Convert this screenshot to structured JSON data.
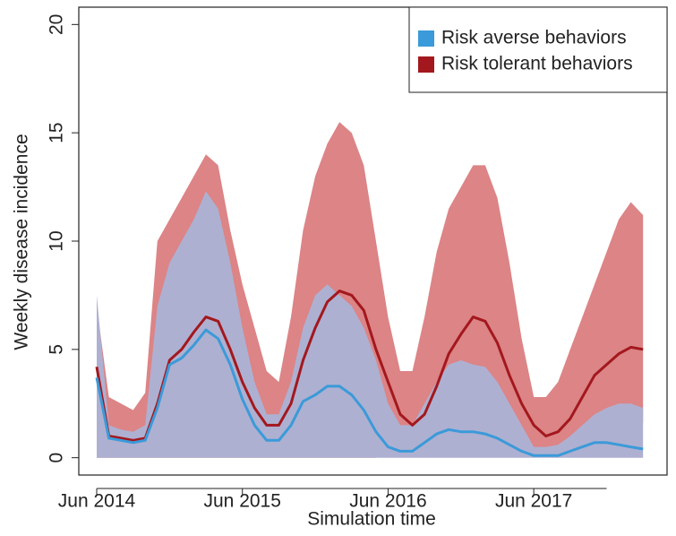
{
  "chart_data": {
    "type": "line",
    "x_label": "Simulation time",
    "y_label": "Weekly disease incidence",
    "x": [
      "Jun 2014",
      "Jul 2014",
      "Aug 2014",
      "Sep 2014",
      "Oct 2014",
      "Nov 2014",
      "Dec 2014",
      "Jan 2015",
      "Feb 2015",
      "Mar 2015",
      "Apr 2015",
      "May 2015",
      "Jun 2015",
      "Jul 2015",
      "Aug 2015",
      "Sep 2015",
      "Oct 2015",
      "Nov 2015",
      "Dec 2015",
      "Jan 2016",
      "Feb 2016",
      "Mar 2016",
      "Apr 2016",
      "May 2016",
      "Jun 2016",
      "Jul 2016",
      "Aug 2016",
      "Sep 2016",
      "Oct 2016",
      "Nov 2016",
      "Dec 2016",
      "Jan 2017",
      "Feb 2017",
      "Mar 2017",
      "Apr 2017",
      "May 2017",
      "Jun 2017",
      "Jul 2017",
      "Aug 2017",
      "Sep 2017",
      "Oct 2017",
      "Nov 2017",
      "Dec 2017",
      "Jan 2018",
      "Feb 2018",
      "Mar 2018"
    ],
    "xticks": [
      "Jun 2014",
      "Jun 2015",
      "Jun 2016",
      "Jun 2017"
    ],
    "ylim": [
      -0.8,
      20.8
    ],
    "yticks": [
      0,
      5,
      10,
      15,
      20
    ],
    "legend": "top-right",
    "series": [
      {
        "name": "Risk tolerant behaviors",
        "color": "#a3181e",
        "band_color": "#dc8486",
        "values": [
          4.2,
          1.0,
          0.9,
          0.8,
          0.9,
          2.5,
          4.5,
          5.0,
          5.8,
          6.5,
          6.3,
          5.0,
          3.5,
          2.3,
          1.5,
          1.5,
          2.5,
          4.5,
          6.0,
          7.2,
          7.7,
          7.5,
          6.8,
          5.0,
          3.5,
          2.0,
          1.5,
          2.0,
          3.3,
          4.8,
          5.7,
          6.5,
          6.3,
          5.3,
          3.8,
          2.5,
          1.5,
          1.0,
          1.2,
          1.8,
          2.8,
          3.8,
          4.3,
          4.8,
          5.1,
          5.0
        ],
        "band_upper": [
          7.0,
          2.8,
          2.5,
          2.2,
          3.0,
          10,
          11,
          12,
          13,
          14,
          13.5,
          10.5,
          8.0,
          6.0,
          4.0,
          3.5,
          6.5,
          10.5,
          13,
          14.5,
          15.5,
          15,
          13.5,
          10,
          6.5,
          4,
          4,
          6.5,
          9.5,
          11.5,
          12.5,
          13.5,
          13.5,
          12,
          9,
          5.5,
          2.8,
          2.8,
          3.5,
          5,
          6.5,
          8,
          9.5,
          11,
          11.8,
          11.2
        ],
        "band_lower": [
          0,
          0,
          0,
          0,
          0,
          0,
          0,
          0,
          0,
          0,
          0,
          0,
          0,
          0,
          0,
          0,
          0,
          0,
          0,
          0,
          0,
          0,
          0,
          0,
          0.3,
          0.3,
          0.3,
          0.5,
          0.8,
          1,
          1,
          1,
          0.8,
          0.5,
          0.3,
          0.2,
          0.2,
          0.3,
          0.5,
          0.8,
          1.0,
          1.2,
          1.4,
          1.5,
          1.6,
          1.6
        ]
      },
      {
        "name": "Risk averse behaviors",
        "color": "#3b9ad9",
        "band_color": "#aeb0d1",
        "values": [
          3.7,
          0.9,
          0.8,
          0.7,
          0.8,
          2.3,
          4.3,
          4.6,
          5.2,
          5.9,
          5.5,
          4.3,
          2.7,
          1.5,
          0.8,
          0.8,
          1.5,
          2.6,
          2.9,
          3.3,
          3.3,
          2.9,
          2.2,
          1.2,
          0.5,
          0.3,
          0.3,
          0.7,
          1.1,
          1.3,
          1.2,
          1.2,
          1.1,
          0.9,
          0.6,
          0.3,
          0.1,
          0.1,
          0.1,
          0.3,
          0.5,
          0.7,
          0.7,
          0.6,
          0.5,
          0.4
        ],
        "band_upper": [
          7.5,
          1.5,
          1.3,
          1.2,
          1.5,
          7,
          9,
          10,
          11,
          12.3,
          11.5,
          9,
          6,
          3.5,
          2,
          2,
          3.5,
          6,
          7.5,
          8,
          7.5,
          7,
          6,
          4.5,
          2.5,
          1.5,
          1.5,
          2.5,
          3.5,
          4.3,
          4.5,
          4.3,
          4.2,
          3.5,
          2.5,
          1.5,
          0.5,
          0.5,
          0.6,
          1,
          1.5,
          2,
          2.3,
          2.5,
          2.5,
          2.3
        ],
        "band_lower": [
          0,
          0,
          0,
          0,
          0,
          0,
          0,
          0,
          0,
          0,
          0,
          0,
          0,
          0,
          0,
          0,
          0,
          0,
          0,
          0,
          0,
          0,
          0,
          0,
          0,
          0,
          0,
          0,
          0,
          0,
          0,
          0,
          0,
          0,
          0,
          0,
          0,
          0,
          0,
          0,
          0,
          0,
          0,
          0,
          0,
          0
        ]
      }
    ]
  }
}
